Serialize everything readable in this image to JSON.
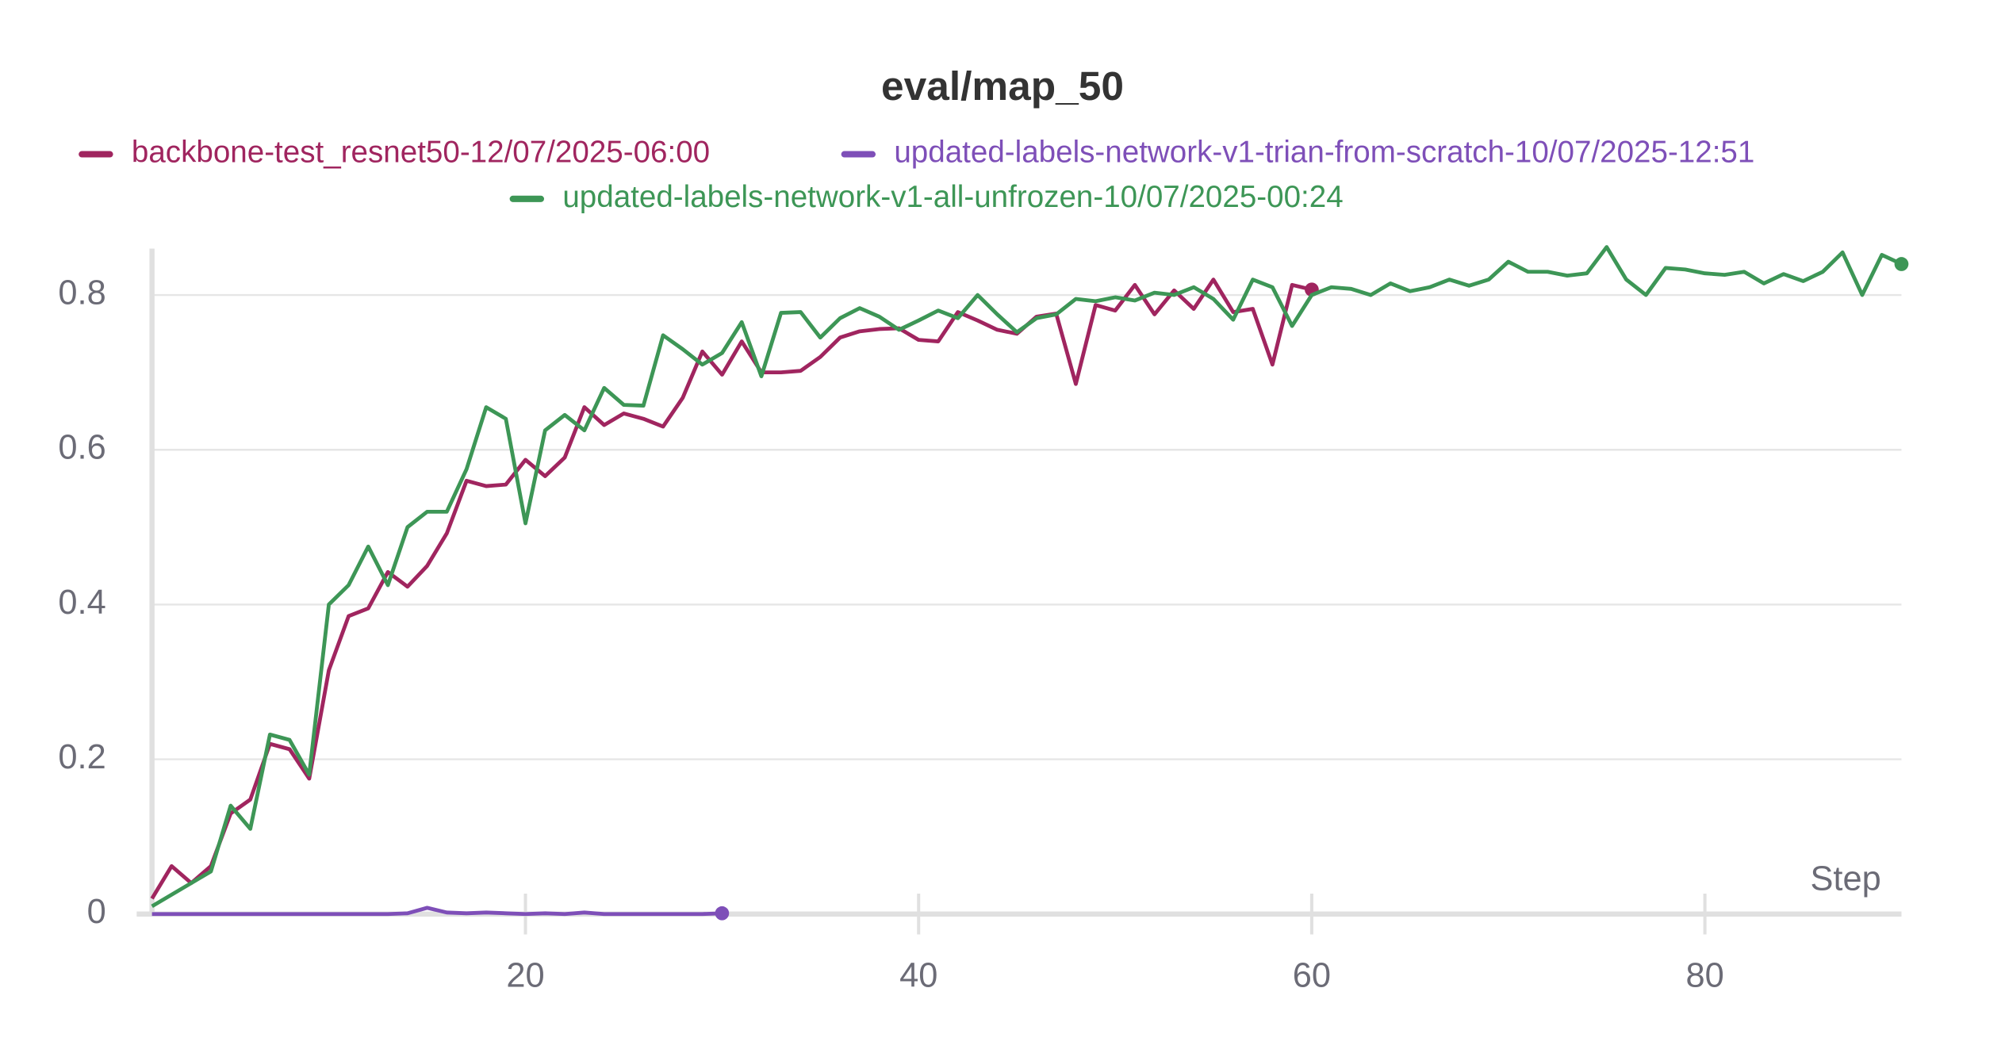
{
  "chart_data": {
    "type": "line",
    "title": "eval/map_50",
    "x_label": "Step",
    "xlim": [
      1,
      90
    ],
    "ylim": [
      0,
      0.86
    ],
    "xticks": [
      20,
      40,
      60,
      80
    ],
    "yticks": [
      0,
      0.2,
      0.4,
      0.6,
      0.8
    ],
    "grid": true,
    "legend": "top",
    "series": [
      {
        "name": "backbone-test_resnet50-12/07/2025-06:00",
        "color": "#a0255f",
        "x": [
          1,
          2,
          3,
          4,
          5,
          6,
          7,
          8,
          9,
          10,
          11,
          12,
          13,
          14,
          15,
          16,
          17,
          18,
          19,
          20,
          21,
          22,
          23,
          24,
          25,
          26,
          27,
          28,
          29,
          30,
          31,
          32,
          33,
          34,
          35,
          36,
          37,
          38,
          39,
          40,
          41,
          42,
          43,
          44,
          45,
          46,
          47,
          48,
          49,
          50,
          51,
          52,
          53,
          54,
          55,
          56,
          57,
          58,
          59,
          60
        ],
        "values": [
          0.02,
          0.062,
          0.04,
          0.062,
          0.13,
          0.148,
          0.22,
          0.213,
          0.175,
          0.315,
          0.385,
          0.395,
          0.442,
          0.423,
          0.45,
          0.492,
          0.56,
          0.553,
          0.555,
          0.587,
          0.566,
          0.59,
          0.655,
          0.632,
          0.647,
          0.64,
          0.63,
          0.667,
          0.727,
          0.697,
          0.74,
          0.7,
          0.7,
          0.702,
          0.72,
          0.745,
          0.753,
          0.756,
          0.757,
          0.742,
          0.74,
          0.778,
          0.767,
          0.755,
          0.75,
          0.772,
          0.776,
          0.685,
          0.787,
          0.78,
          0.813,
          0.775,
          0.806,
          0.782,
          0.82,
          0.778,
          0.782,
          0.71,
          0.813,
          0.807
        ]
      },
      {
        "name": "updated-labels-network-v1-trian-from-scratch-10/07/2025-12:51",
        "color": "#7e4fb8",
        "x": [
          1,
          2,
          3,
          4,
          5,
          6,
          7,
          8,
          9,
          10,
          11,
          12,
          13,
          14,
          15,
          16,
          17,
          18,
          19,
          20,
          21,
          22,
          23,
          24,
          25,
          26,
          27,
          28,
          29,
          30
        ],
        "values": [
          0,
          0,
          0,
          0,
          0,
          0,
          0,
          0,
          0,
          0,
          0,
          0,
          0,
          0.001,
          0.008,
          0.002,
          0.001,
          0.002,
          0.001,
          0,
          0.001,
          0,
          0.002,
          0,
          0,
          0,
          0,
          0,
          0,
          0.001
        ]
      },
      {
        "name": "updated-labels-network-v1-all-unfrozen-10/07/2025-00:24",
        "color": "#3d9656",
        "x": [
          1,
          2,
          3,
          4,
          5,
          6,
          7,
          8,
          9,
          10,
          11,
          12,
          13,
          14,
          15,
          16,
          17,
          18,
          19,
          20,
          21,
          22,
          23,
          24,
          25,
          26,
          27,
          28,
          29,
          30,
          31,
          32,
          33,
          34,
          35,
          36,
          37,
          38,
          39,
          40,
          41,
          42,
          43,
          44,
          45,
          46,
          47,
          48,
          49,
          50,
          51,
          52,
          53,
          54,
          55,
          56,
          57,
          58,
          59,
          60,
          61,
          62,
          63,
          64,
          65,
          66,
          67,
          68,
          69,
          70,
          71,
          72,
          73,
          74,
          75,
          76,
          77,
          78,
          79,
          80,
          81,
          82,
          83,
          84,
          85,
          86,
          87,
          88,
          89,
          90
        ],
        "values": [
          0.01,
          0.025,
          0.04,
          0.055,
          0.14,
          0.11,
          0.232,
          0.225,
          0.18,
          0.4,
          0.425,
          0.475,
          0.425,
          0.5,
          0.52,
          0.52,
          0.575,
          0.655,
          0.64,
          0.505,
          0.625,
          0.645,
          0.625,
          0.68,
          0.658,
          0.657,
          0.748,
          0.73,
          0.71,
          0.725,
          0.765,
          0.695,
          0.777,
          0.778,
          0.745,
          0.77,
          0.783,
          0.772,
          0.755,
          0.767,
          0.78,
          0.77,
          0.8,
          0.775,
          0.752,
          0.77,
          0.775,
          0.795,
          0.792,
          0.797,
          0.793,
          0.803,
          0.8,
          0.81,
          0.795,
          0.768,
          0.82,
          0.81,
          0.76,
          0.8,
          0.81,
          0.808,
          0.8,
          0.815,
          0.805,
          0.81,
          0.82,
          0.812,
          0.82,
          0.843,
          0.83,
          0.83,
          0.825,
          0.828,
          0.862,
          0.82,
          0.8,
          0.835,
          0.833,
          0.828,
          0.826,
          0.83,
          0.815,
          0.827,
          0.818,
          0.83,
          0.855,
          0.8,
          0.852,
          0.84
        ]
      }
    ]
  }
}
